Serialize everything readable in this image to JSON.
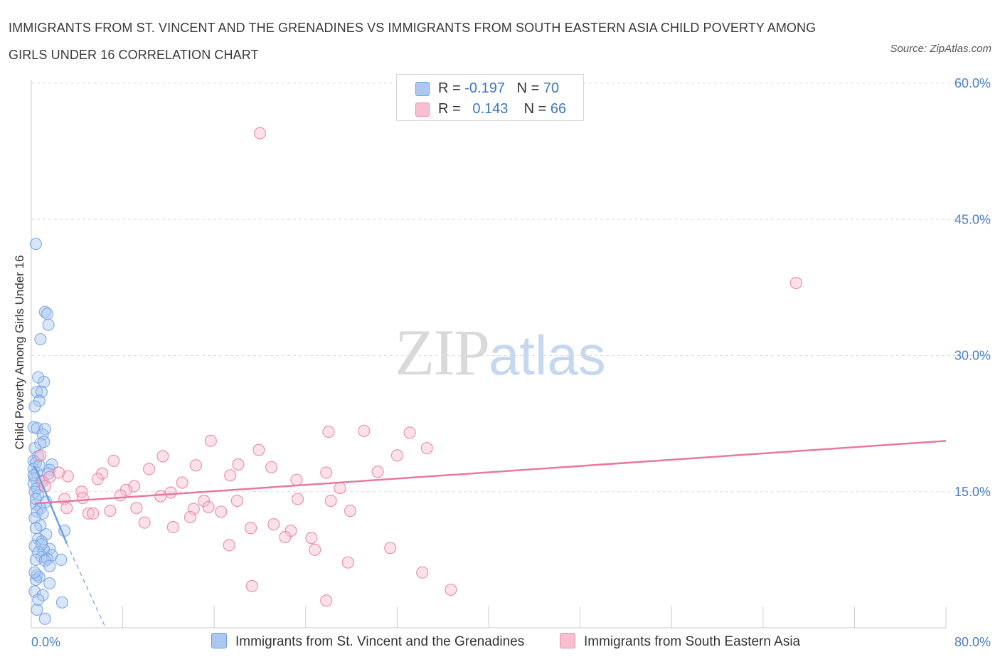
{
  "title": "IMMIGRANTS FROM ST. VINCENT AND THE GRENADINES VS IMMIGRANTS FROM SOUTH EASTERN ASIA CHILD POVERTY AMONG GIRLS UNDER 16 CORRELATION CHART",
  "source": "Source: ZipAtlas.com",
  "watermark": {
    "zip": "ZIP",
    "atlas": "atlas"
  },
  "legend": {
    "rows": [
      {
        "r_label": "R =",
        "r_value": "-0.197",
        "n_label": "N =",
        "n_value": "70",
        "color": "#aac8f0",
        "border": "#6d9fe0"
      },
      {
        "r_label": "R =",
        "r_value": "0.143",
        "n_label": "N =",
        "n_value": "66",
        "color": "#f7bfd0",
        "border": "#e891ac"
      }
    ]
  },
  "bottom_legend": {
    "blue": "Immigrants from St. Vincent and the Grenadines",
    "pink": "Immigrants from South Eastern Asia"
  },
  "chart_data": {
    "type": "scatter",
    "title": "IMMIGRANTS FROM ST. VINCENT AND THE GRENADINES VS IMMIGRANTS FROM SOUTH EASTERN ASIA CHILD POVERTY AMONG GIRLS UNDER 16 CORRELATION CHART",
    "xlabel": "",
    "ylabel": "Child Poverty Among Girls Under 16",
    "xlim": [
      0,
      80
    ],
    "ylim": [
      0,
      60
    ],
    "x_ticks": [
      "0.0%",
      "80.0%"
    ],
    "y_ticks": [
      {
        "value": 15,
        "label": "15.0%"
      },
      {
        "value": 30,
        "label": "30.0%"
      },
      {
        "value": 45,
        "label": "45.0%"
      },
      {
        "value": 60,
        "label": "60.0%"
      }
    ],
    "grid": "horizontal dashed",
    "legend_position": "top-center",
    "series": [
      {
        "name": "Immigrants from St. Vincent and the Grenadines",
        "color": "#6d9fe0",
        "fill": "#aac8f0",
        "trend": {
          "x": [
            0.3,
            3.1
          ],
          "y": [
            17.8,
            9.3
          ]
        },
        "trend_extension": {
          "x": [
            3.1,
            6.5
          ],
          "y": [
            9.3,
            0
          ]
        },
        "points": [
          [
            0.4,
            42.3
          ],
          [
            1.2,
            34.8
          ],
          [
            1.4,
            34.6
          ],
          [
            1.5,
            33.4
          ],
          [
            0.8,
            31.8
          ],
          [
            1.1,
            27.1
          ],
          [
            0.6,
            27.6
          ],
          [
            0.5,
            26.0
          ],
          [
            0.9,
            26.0
          ],
          [
            0.7,
            25.0
          ],
          [
            0.3,
            24.4
          ],
          [
            0.2,
            22.1
          ],
          [
            0.5,
            22.0
          ],
          [
            1.2,
            21.9
          ],
          [
            1.0,
            21.3
          ],
          [
            1.1,
            20.5
          ],
          [
            0.8,
            20.3
          ],
          [
            0.3,
            19.8
          ],
          [
            0.6,
            18.9
          ],
          [
            0.2,
            18.4
          ],
          [
            0.4,
            18.2
          ],
          [
            1.8,
            18.0
          ],
          [
            0.2,
            17.5
          ],
          [
            0.5,
            17.1
          ],
          [
            1.6,
            17.4
          ],
          [
            0.3,
            16.5
          ],
          [
            0.9,
            16.2
          ],
          [
            0.2,
            15.9
          ],
          [
            0.5,
            15.4
          ],
          [
            0.3,
            15.0
          ],
          [
            0.6,
            14.6
          ],
          [
            1.3,
            13.9
          ],
          [
            0.4,
            13.6
          ],
          [
            0.8,
            13.2
          ],
          [
            0.5,
            12.8
          ],
          [
            1.0,
            12.6
          ],
          [
            0.3,
            12.1
          ],
          [
            0.8,
            11.3
          ],
          [
            0.4,
            11.0
          ],
          [
            2.9,
            10.7
          ],
          [
            1.3,
            10.3
          ],
          [
            0.6,
            9.8
          ],
          [
            0.9,
            9.5
          ],
          [
            0.3,
            9.0
          ],
          [
            1.6,
            8.7
          ],
          [
            1.1,
            8.6
          ],
          [
            0.6,
            8.3
          ],
          [
            1.8,
            8.0
          ],
          [
            0.9,
            7.8
          ],
          [
            1.4,
            7.6
          ],
          [
            0.4,
            7.5
          ],
          [
            2.6,
            7.5
          ],
          [
            1.2,
            7.4
          ],
          [
            1.6,
            6.8
          ],
          [
            0.5,
            5.8
          ],
          [
            0.7,
            5.6
          ],
          [
            0.4,
            5.3
          ],
          [
            1.6,
            4.9
          ],
          [
            0.3,
            4.0
          ],
          [
            1.0,
            3.6
          ],
          [
            2.7,
            2.8
          ],
          [
            0.5,
            2.0
          ],
          [
            1.2,
            1.0
          ],
          [
            0.2,
            16.8
          ],
          [
            0.7,
            17.9
          ],
          [
            0.4,
            14.2
          ],
          [
            1.5,
            17.0
          ],
          [
            0.9,
            9.2
          ],
          [
            0.3,
            6.1
          ],
          [
            0.6,
            3.1
          ]
        ]
      },
      {
        "name": "Immigrants from South Eastern Asia",
        "color": "#e8799c",
        "fill": "#f7bfd0",
        "trend": {
          "x": [
            0.3,
            80
          ],
          "y": [
            13.7,
            20.6
          ]
        },
        "points": [
          [
            20.0,
            54.5
          ],
          [
            66.9,
            38.0
          ],
          [
            26.0,
            21.6
          ],
          [
            29.1,
            21.7
          ],
          [
            33.1,
            21.5
          ],
          [
            15.7,
            20.6
          ],
          [
            32.0,
            19.0
          ],
          [
            19.9,
            19.6
          ],
          [
            34.6,
            19.8
          ],
          [
            11.5,
            18.9
          ],
          [
            7.2,
            18.4
          ],
          [
            14.4,
            17.9
          ],
          [
            18.1,
            18.0
          ],
          [
            21.0,
            17.7
          ],
          [
            10.3,
            17.5
          ],
          [
            25.8,
            17.1
          ],
          [
            30.3,
            17.2
          ],
          [
            6.2,
            17.0
          ],
          [
            17.4,
            16.8
          ],
          [
            3.2,
            16.7
          ],
          [
            23.2,
            16.3
          ],
          [
            13.2,
            16.0
          ],
          [
            5.8,
            16.4
          ],
          [
            9.0,
            15.6
          ],
          [
            27.0,
            15.4
          ],
          [
            8.3,
            15.2
          ],
          [
            4.4,
            15.0
          ],
          [
            12.2,
            14.9
          ],
          [
            7.8,
            14.6
          ],
          [
            11.3,
            14.5
          ],
          [
            4.5,
            14.3
          ],
          [
            2.9,
            14.2
          ],
          [
            23.3,
            14.2
          ],
          [
            15.1,
            14.0
          ],
          [
            18.0,
            14.0
          ],
          [
            26.2,
            14.0
          ],
          [
            9.2,
            13.2
          ],
          [
            15.5,
            13.3
          ],
          [
            14.2,
            13.1
          ],
          [
            3.1,
            13.2
          ],
          [
            6.9,
            12.9
          ],
          [
            16.6,
            12.8
          ],
          [
            27.9,
            12.9
          ],
          [
            5.0,
            12.6
          ],
          [
            5.4,
            12.6
          ],
          [
            13.9,
            12.2
          ],
          [
            9.9,
            11.6
          ],
          [
            21.2,
            11.4
          ],
          [
            12.4,
            11.1
          ],
          [
            19.2,
            11.0
          ],
          [
            22.7,
            10.7
          ],
          [
            22.2,
            10.0
          ],
          [
            24.5,
            9.9
          ],
          [
            17.3,
            9.1
          ],
          [
            31.4,
            8.8
          ],
          [
            24.8,
            8.6
          ],
          [
            27.7,
            7.2
          ],
          [
            34.2,
            6.1
          ],
          [
            19.3,
            4.6
          ],
          [
            36.7,
            4.2
          ],
          [
            25.8,
            3.0
          ],
          [
            1.0,
            16.1
          ],
          [
            1.6,
            16.6
          ],
          [
            2.4,
            17.1
          ],
          [
            0.8,
            19.0
          ],
          [
            1.2,
            15.6
          ]
        ]
      }
    ]
  }
}
